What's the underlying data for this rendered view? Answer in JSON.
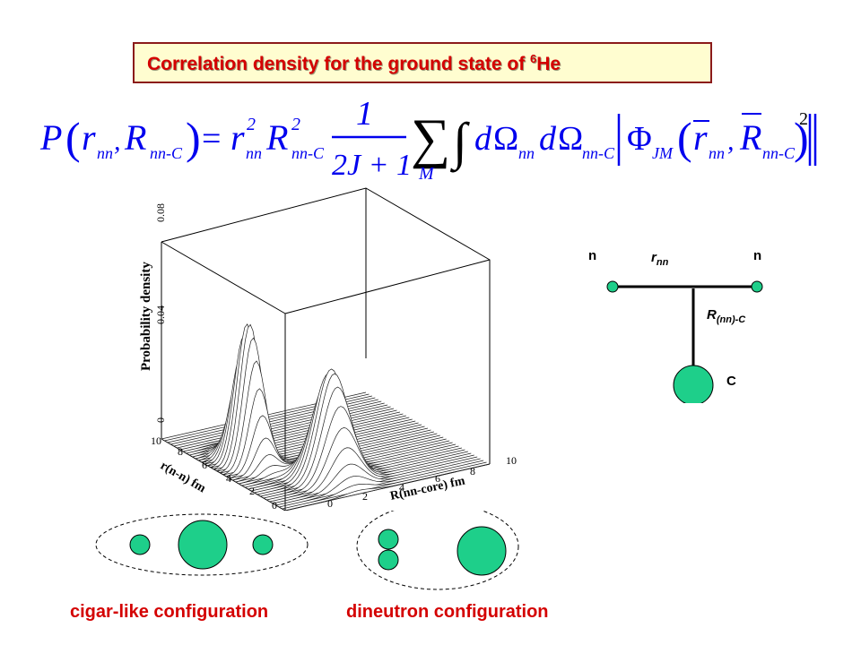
{
  "title": {
    "text": "Correlation density for the ground state of ",
    "superscript": "6",
    "nucleus": "He"
  },
  "equation": {
    "lhs_P": "P",
    "r": "r",
    "sub_nn": "nn",
    "comma": ",",
    "R": "R",
    "sub_nnC": "nn-C",
    "equals": "=",
    "sq": "2",
    "numerator": "1",
    "denominator": "2J + 1",
    "sum_index": "M",
    "d": "d",
    "Omega": "Ω",
    "Phi": "Φ",
    "sub_JM": "JM",
    "power": "2"
  },
  "plot": {
    "z_label": "Probability density",
    "x_label": "r(n-n) fm",
    "y_label": "R(nn-core) fm",
    "z_ticks": [
      "0",
      "0.04",
      "0.08"
    ],
    "x_ticks": [
      "0",
      "2",
      "4",
      "6",
      "8",
      "10"
    ],
    "y_ticks": [
      "0",
      "2",
      "4",
      "6",
      "8",
      "10"
    ]
  },
  "schematic": {
    "n_left": "n",
    "n_right": "n",
    "r_label": "r",
    "r_sub": "nn",
    "R_label": "R",
    "R_sub": "(nn)-C",
    "core_label": "C",
    "node_color": "#1ecf8a"
  },
  "configs": {
    "cigar_label": "cigar-like configuration",
    "dineutron_label": "dineutron configuration",
    "color": "#1ecf8a"
  },
  "colors": {
    "title_red": "#d40000",
    "equation_blue": "#0000ee",
    "node_green": "#1ecf8a"
  }
}
